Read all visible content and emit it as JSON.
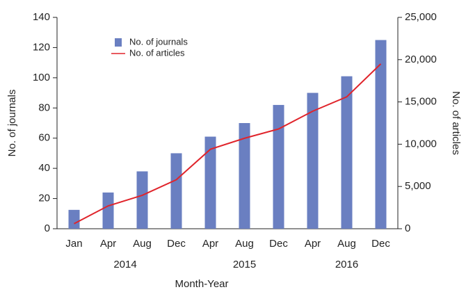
{
  "chart_data": {
    "type": "bar_line",
    "categories": [
      "Jan",
      "Apr",
      "Aug",
      "Dec",
      "Apr",
      "Aug",
      "Dec",
      "Apr",
      "Aug",
      "Dec"
    ],
    "x_groups": [
      {
        "label": "2014",
        "size": 4
      },
      {
        "label": "2015",
        "size": 3
      },
      {
        "label": "2016",
        "size": 3
      }
    ],
    "xlabel": "Month-Year",
    "ylabel": "No. of journals",
    "y2label": "No. of articles",
    "ylim": [
      0,
      140
    ],
    "yticks": [
      0,
      20,
      40,
      60,
      80,
      100,
      120,
      140
    ],
    "y2lim": [
      0,
      25000
    ],
    "y2ticks": [
      0,
      {
        "value": 5000,
        "label": "5,000"
      },
      {
        "value": 10000,
        "label": "10,000"
      },
      {
        "value": 15000,
        "label": "15,000"
      },
      {
        "value": 20000,
        "label": "20,000"
      },
      {
        "value": 25000,
        "label": "25,000"
      }
    ],
    "series": [
      {
        "name": "No. of journals",
        "kind": "bar",
        "color": "#6a7fc1",
        "values": [
          12.5,
          24,
          38,
          50,
          61,
          70,
          82,
          90,
          101,
          125
        ]
      },
      {
        "name": "No. of articles",
        "kind": "line",
        "axis": "y2",
        "color": "#e0242b",
        "values": [
          600,
          2700,
          3950,
          5800,
          9400,
          10700,
          11800,
          13900,
          15600,
          19500
        ]
      }
    ],
    "legend": "upper left",
    "grid": false
  }
}
